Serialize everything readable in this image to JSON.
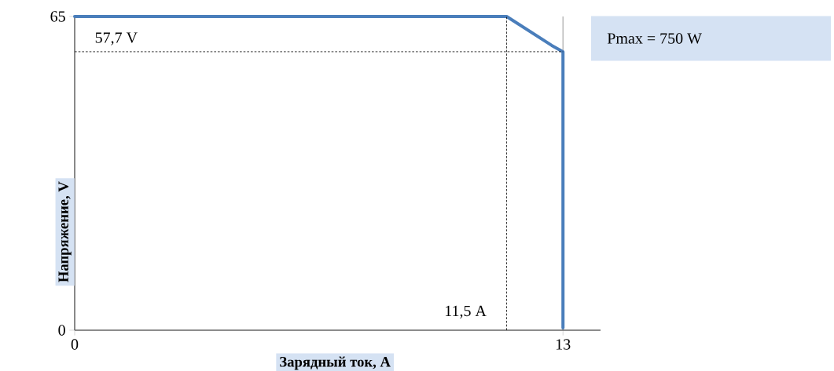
{
  "chart_data": {
    "type": "line",
    "xlabel": "Зарядный ток, A",
    "ylabel": "Напряжение, V",
    "x": [
      0,
      11.5,
      12.7,
      13,
      13
    ],
    "series": [
      {
        "color": "#4a7ebb",
        "values": [
          65,
          65,
          59,
          57.7,
          0.5
        ]
      }
    ],
    "xlim": [
      0,
      14
    ],
    "ylim": [
      0,
      65
    ],
    "xticks": [
      0,
      13
    ],
    "yticks": [
      0,
      65
    ],
    "grid": "x",
    "marker": "none",
    "line_style": "solid",
    "ref_lines": [
      {
        "axis": "y",
        "value": 57.7,
        "label": "57,7 V",
        "line_style": "dashed",
        "color": "#000000"
      },
      {
        "axis": "x",
        "value": 11.5,
        "label": "11,5 A",
        "line_style": "dashed",
        "color": "#000000"
      }
    ],
    "annotations": [
      "Pmax = 750 W"
    ]
  }
}
